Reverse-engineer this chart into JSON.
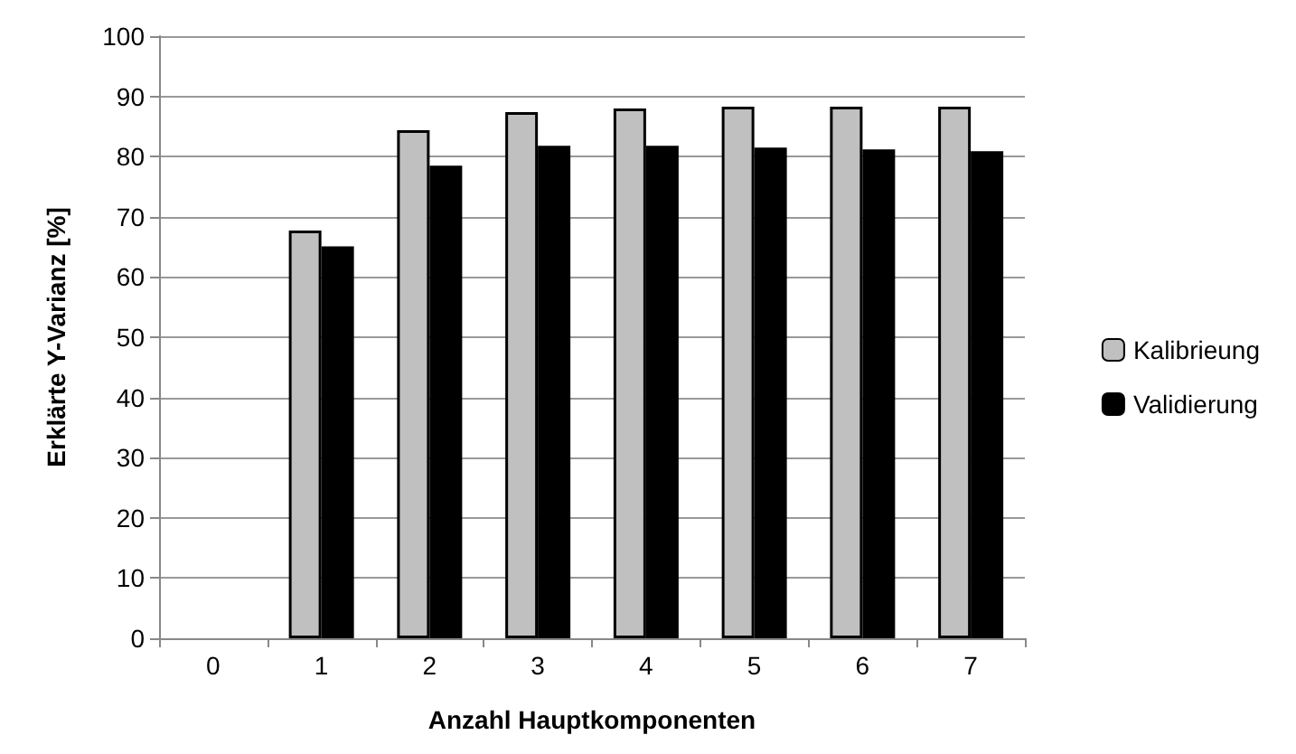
{
  "chart_data": {
    "type": "bar",
    "xlabel": "Anzahl Hauptkomponenten",
    "ylabel": "Erklärte Y-Varianz [%]",
    "categories": [
      "0",
      "1",
      "2",
      "3",
      "4",
      "5",
      "6",
      "7"
    ],
    "series": [
      {
        "name": "Kalibrieung",
        "color": "#c0c0c0",
        "values": [
          null,
          67.7,
          84.4,
          87.4,
          88,
          88.3,
          88.3,
          88.3
        ]
      },
      {
        "name": "Validierung",
        "color": "#000000",
        "values": [
          null,
          65.1,
          78.5,
          81.8,
          81.8,
          81.5,
          81.2,
          80.9
        ]
      }
    ],
    "ylim": [
      0,
      100
    ],
    "yticks": [
      0,
      10,
      20,
      30,
      40,
      50,
      60,
      70,
      80,
      90,
      100
    ],
    "grid": "y",
    "legend": "right"
  }
}
